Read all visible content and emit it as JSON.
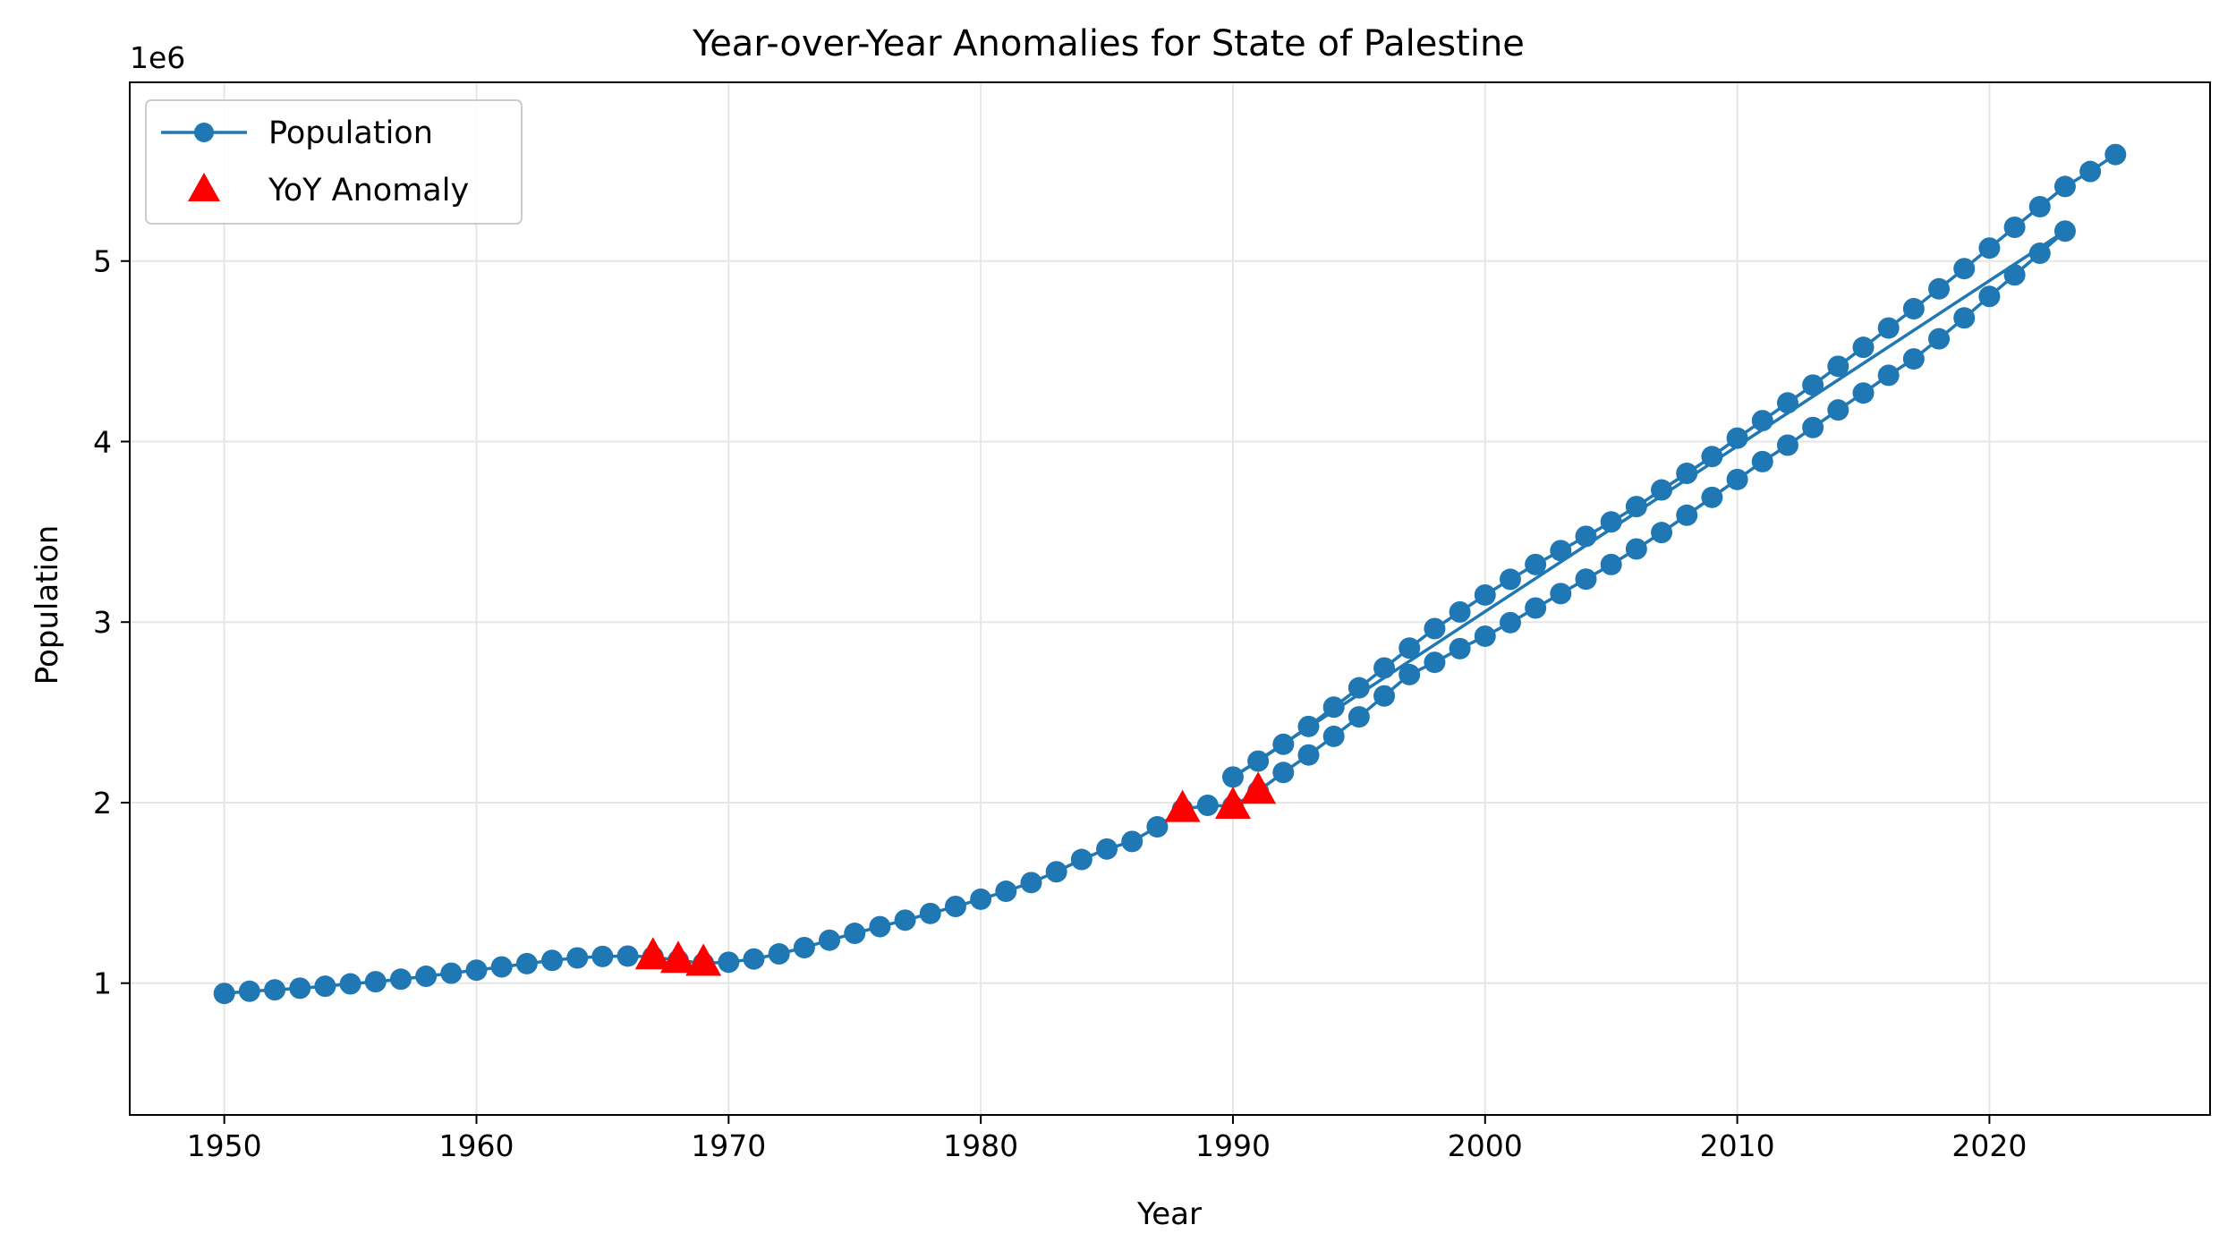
{
  "chart_data": {
    "type": "line",
    "title": "Year-over-Year Anomalies for State of Palestine",
    "xlabel": "Year",
    "ylabel": "Population",
    "y_offset_label": "1e6",
    "xlim": [
      1946.25,
      2028.75
    ],
    "ylim": [
      270000,
      5990000
    ],
    "xticks": [
      1950,
      1960,
      1970,
      1980,
      1990,
      2000,
      2010,
      2020
    ],
    "xtick_labels": [
      "1950",
      "1960",
      "1970",
      "1980",
      "1990",
      "2000",
      "2010",
      "2020"
    ],
    "yticks": [
      1000000,
      2000000,
      3000000,
      4000000,
      5000000
    ],
    "ytick_labels": [
      "1",
      "2",
      "3",
      "4",
      "5"
    ],
    "grid": true,
    "legend_position": "upper-left",
    "colors": {
      "line": "#1f77b4",
      "anomaly": "#ff0000",
      "grid": "#e6e6e6"
    },
    "series": [
      {
        "name": "Population",
        "marker": "circle",
        "x": [
          1950,
          1951,
          1952,
          1953,
          1954,
          1955,
          1956,
          1957,
          1958,
          1959,
          1960,
          1961,
          1962,
          1963,
          1964,
          1965,
          1966,
          1967,
          1968,
          1969,
          1970,
          1971,
          1972,
          1973,
          1974,
          1975,
          1976,
          1977,
          1978,
          1979,
          1980,
          1981,
          1982,
          1983,
          1984,
          1985,
          1986,
          1987,
          1988,
          1989,
          1990,
          1991,
          1992,
          1993,
          1994,
          1995,
          1996,
          1997,
          1998,
          1999,
          2000,
          2001,
          2002,
          2003,
          2004,
          2005,
          2006,
          2007,
          2008,
          2009,
          2010,
          2011,
          2012,
          2013,
          2014,
          2015,
          2016,
          2017,
          2018,
          2019,
          2020,
          2021,
          2022,
          2023,
          1990,
          1991,
          1992,
          1993,
          1994,
          1995,
          1996,
          1997,
          1998,
          1999,
          2000,
          2001,
          2002,
          2003,
          2004,
          2005,
          2006,
          2007,
          2008,
          2009,
          2010,
          2011,
          2012,
          2013,
          2014,
          2015,
          2016,
          2017,
          2018,
          2019,
          2020,
          2021,
          2022,
          2023,
          2024,
          2025
        ],
        "y": [
          943000,
          955000,
          963000,
          972000,
          983000,
          996000,
          1008000,
          1022000,
          1038000,
          1055000,
          1072000,
          1090000,
          1108000,
          1126000,
          1140000,
          1148000,
          1150000,
          1146000,
          1126000,
          1110000,
          1116000,
          1134000,
          1162000,
          1197000,
          1238000,
          1276000,
          1313000,
          1349000,
          1386000,
          1425000,
          1465000,
          1509000,
          1557000,
          1617000,
          1685000,
          1743000,
          1785000,
          1866000,
          1962000,
          1985000,
          1980000,
          2063000,
          2167000,
          2264000,
          2367000,
          2475000,
          2591000,
          2709000,
          2777000,
          2853000,
          2922000,
          2997000,
          3078000,
          3158000,
          3238000,
          3319000,
          3405000,
          3496000,
          3592000,
          3691000,
          3790000,
          3889000,
          3980000,
          4078000,
          4175000,
          4269000,
          4367000,
          4458000,
          4569000,
          4685000,
          4804000,
          4923000,
          5043000,
          5166000,
          2142000,
          2230000,
          2323000,
          2422000,
          2529000,
          2636000,
          2746000,
          2856000,
          2964000,
          3056000,
          3150000,
          3237000,
          3319000,
          3396000,
          3475000,
          3555000,
          3640000,
          3732000,
          3824000,
          3917000,
          4019000,
          4116000,
          4214000,
          4313000,
          4417000,
          4522000,
          4629000,
          4736000,
          4846000,
          4958000,
          5072000,
          5187000,
          5301000,
          5413000,
          5496000,
          5590000
        ]
      },
      {
        "name": "YoY Anomaly",
        "marker": "triangle",
        "x": [
          1967,
          1968,
          1969,
          1988,
          1990,
          1991
        ],
        "y": [
          1146000,
          1126000,
          1110000,
          1962000,
          1980000,
          2063000
        ]
      }
    ]
  }
}
